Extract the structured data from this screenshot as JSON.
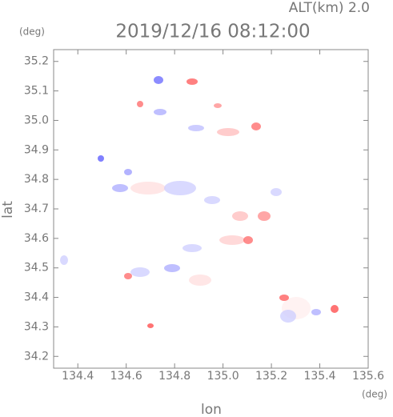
{
  "chart_data": {
    "type": "map",
    "altitude_label": "ALT(km)  2.0",
    "title": "2019/12/16 08:12:00",
    "y_unit": "(deg)",
    "x_unit": "(deg)",
    "ylabel": "lat",
    "xlabel": "lon",
    "xlim": [
      134.3,
      135.6
    ],
    "xticks": [
      {
        "value": 134.4,
        "label": "134.4"
      },
      {
        "value": 134.6,
        "label": "134.6"
      },
      {
        "value": 134.8,
        "label": "134.8"
      },
      {
        "value": 135.0,
        "label": "135.0"
      },
      {
        "value": 135.2,
        "label": "135.2"
      },
      {
        "value": 135.4,
        "label": "135.4"
      },
      {
        "value": 135.6,
        "label": "135.6"
      }
    ],
    "ylim": [
      34.16,
      35.24
    ],
    "yticks": [
      {
        "value": 34.2,
        "label": "34.2"
      },
      {
        "value": 34.3,
        "label": "34.3"
      },
      {
        "value": 34.4,
        "label": "34.4"
      },
      {
        "value": 34.5,
        "label": "34.5"
      },
      {
        "value": 34.6,
        "label": "34.6"
      },
      {
        "value": 34.7,
        "label": "34.7"
      },
      {
        "value": 34.8,
        "label": "34.8"
      },
      {
        "value": 34.9,
        "label": "34.9"
      },
      {
        "value": 35.0,
        "label": "35.0"
      },
      {
        "value": 35.1,
        "label": "35.1"
      },
      {
        "value": 35.2,
        "label": "35.2"
      }
    ]
  }
}
